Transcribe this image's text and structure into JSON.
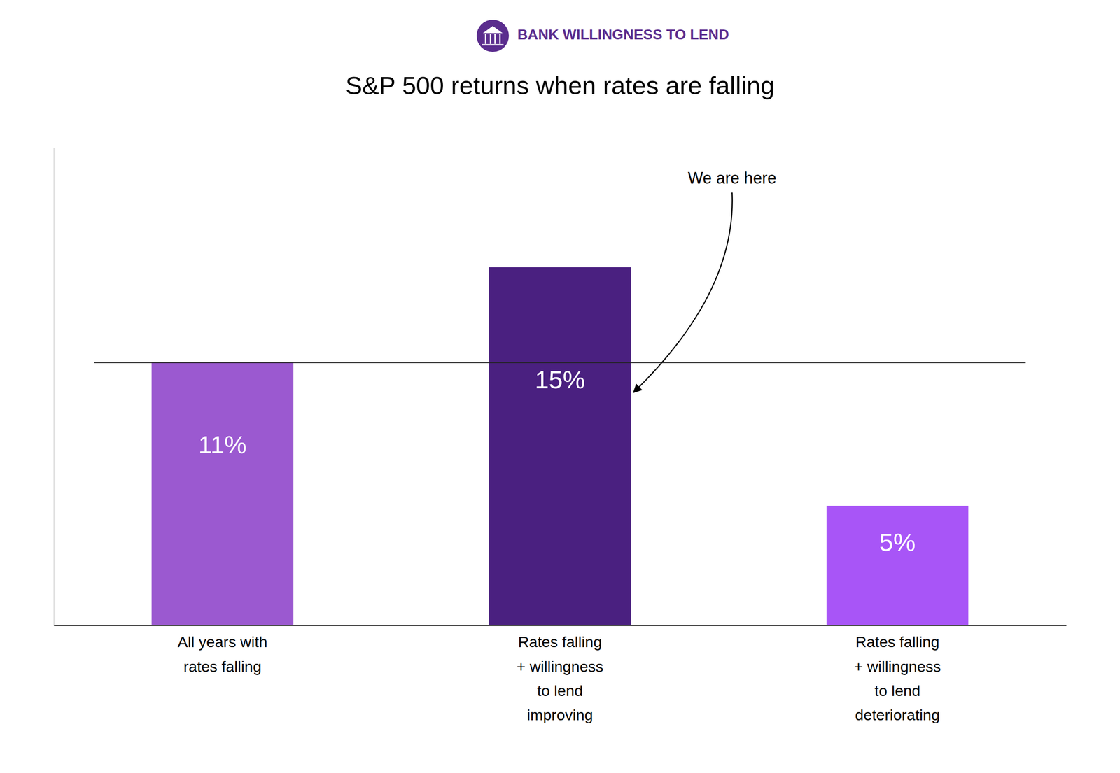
{
  "chart_data": {
    "type": "bar",
    "title": "S&P 500 returns when rates are falling",
    "subtitle": "BANK WILLINGNESS TO LEND",
    "categories": [
      "All years with\nrates falling",
      "Rates falling\n+ willingness\nto lend\nimproving",
      "Rates falling\n+ willingness\nto lend\ndeteriorating"
    ],
    "values": [
      11,
      15,
      5
    ],
    "value_labels": [
      "11%",
      "15%",
      "5%"
    ],
    "colors": [
      "#9b59d0",
      "#4a2080",
      "#a855f7"
    ],
    "data_labels": true,
    "reference_line": 11,
    "annotations": [
      {
        "text": "We are here",
        "category": "Rates falling\n+ willingness\nto lend\nimproving"
      }
    ],
    "ylim": [
      0,
      20
    ],
    "yticks": [],
    "tick_labels": "x",
    "grid": false
  }
}
